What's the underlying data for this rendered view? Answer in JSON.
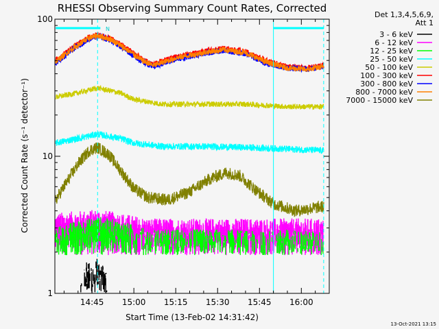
{
  "chart_data": {
    "type": "line",
    "title": "RHESSI Observing Summary Count Rates, Corrected",
    "xlabel": "Start Time (13-Feb-02 14:31:42)",
    "ylabel": "Corrected Count Rate (s⁻¹ detector⁻¹)",
    "y_scale": "log",
    "ylim": [
      1,
      100
    ],
    "xlim": [
      "14:31:42",
      "16:10:00"
    ],
    "y_ticks": [
      "1",
      "10",
      "100"
    ],
    "x_ticks": [
      "14:45",
      "15:00",
      "15:15",
      "15:30",
      "15:45",
      "16:00"
    ],
    "legend_header": [
      "Det 1,3,4,5,6,9,",
      "Att 1"
    ],
    "legend_position": "top-right",
    "annotation_small": "N",
    "footer_date": "13-Oct-2021 13:15",
    "markers": {
      "dashed_vertical_times": [
        "14:47",
        "16:08"
      ],
      "solid_vertical_times": [
        "15:50"
      ],
      "top_bars": [
        [
          "14:32",
          "14:48"
        ],
        [
          "15:50",
          "16:08"
        ]
      ]
    },
    "series": [
      {
        "name": "3 - 6 keV",
        "color": "#000000",
        "x": [
          "14:41",
          "14:43",
          "14:45",
          "14:47",
          "14:49",
          "14:51"
        ],
        "values": [
          1.2,
          1.4,
          1.3,
          1.5,
          1.3,
          1.2
        ]
      },
      {
        "name": "6 - 12 keV",
        "color": "#ff00ff",
        "x": [
          "14:32",
          "14:40",
          "14:47",
          "14:55",
          "15:05",
          "15:20",
          "15:35",
          "15:45",
          "15:55",
          "16:08"
        ],
        "values": [
          3.3,
          3.4,
          3.5,
          3.3,
          3.0,
          3.0,
          3.0,
          3.0,
          3.0,
          3.0
        ]
      },
      {
        "name": "12 - 25 keV",
        "color": "#00ff00",
        "x": [
          "14:32",
          "14:40",
          "14:47",
          "14:55",
          "15:05",
          "15:20",
          "15:35",
          "15:45",
          "15:55",
          "16:08"
        ],
        "values": [
          2.6,
          2.9,
          3.1,
          2.9,
          2.5,
          2.5,
          2.5,
          2.4,
          2.5,
          2.4
        ]
      },
      {
        "name": "25 - 50 keV",
        "color": "#00ffff",
        "x": [
          "14:32",
          "14:40",
          "14:47",
          "14:55",
          "15:00",
          "15:10",
          "15:25",
          "15:40",
          "15:55",
          "16:08"
        ],
        "values": [
          12.5,
          13.5,
          14.5,
          13.5,
          12.5,
          11.8,
          11.8,
          11.6,
          11.3,
          11.0
        ]
      },
      {
        "name": "50 - 100 keV",
        "color": "#cccc00",
        "x": [
          "14:32",
          "14:40",
          "14:47",
          "14:55",
          "15:00",
          "15:10",
          "15:25",
          "15:40",
          "15:55",
          "16:08"
        ],
        "values": [
          27,
          29,
          31.5,
          29,
          26,
          24,
          24,
          24,
          23,
          23
        ]
      },
      {
        "name": "100 - 300 keV",
        "color": "#ff0000",
        "x": [
          "14:32",
          "14:38",
          "14:44",
          "14:47",
          "14:52",
          "14:58",
          "15:03",
          "15:07",
          "15:15",
          "15:25",
          "15:32",
          "15:40",
          "15:47",
          "15:55",
          "16:02",
          "16:08"
        ],
        "values": [
          50,
          62,
          74,
          77,
          72,
          60,
          51,
          47,
          53,
          58,
          61,
          58,
          50,
          45,
          44,
          46
        ]
      },
      {
        "name": "300 - 800 keV",
        "color": "#0000ff",
        "x": [
          "14:32",
          "14:38",
          "14:44",
          "14:47",
          "14:52",
          "14:58",
          "15:03",
          "15:07",
          "15:15",
          "15:25",
          "15:32",
          "15:40",
          "15:47",
          "15:55",
          "16:02",
          "16:08"
        ],
        "values": [
          48,
          60,
          72,
          75,
          70,
          58,
          49,
          45,
          51,
          56,
          59,
          56,
          48,
          44,
          43,
          45
        ]
      },
      {
        "name": "800 - 7000 keV",
        "color": "#ff7f00",
        "x": [
          "14:32",
          "14:38",
          "14:44",
          "14:47",
          "14:52",
          "14:58",
          "15:03",
          "15:07",
          "15:15",
          "15:25",
          "15:32",
          "15:40",
          "15:47",
          "15:55",
          "16:02",
          "16:08"
        ],
        "values": [
          49,
          61,
          73,
          76,
          71,
          59,
          50,
          46,
          52,
          57,
          60,
          57,
          49,
          44,
          43,
          45
        ]
      },
      {
        "name": "7000 - 15000 keV",
        "color": "#808000",
        "x": [
          "14:32",
          "14:36",
          "14:40",
          "14:44",
          "14:47",
          "14:51",
          "14:55",
          "15:00",
          "15:05",
          "15:12",
          "15:20",
          "15:27",
          "15:33",
          "15:38",
          "15:44",
          "15:50",
          "15:58",
          "16:08"
        ],
        "values": [
          4.8,
          6.5,
          8.8,
          11.0,
          11.6,
          10.3,
          8.0,
          5.8,
          5.0,
          4.8,
          5.5,
          6.8,
          7.6,
          7.2,
          5.6,
          4.5,
          4.0,
          4.3
        ]
      }
    ]
  }
}
